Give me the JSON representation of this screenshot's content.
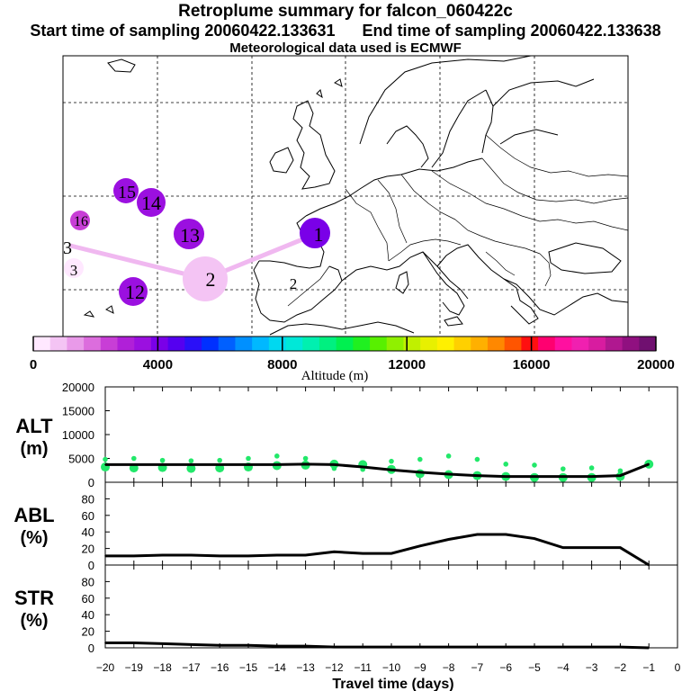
{
  "header": {
    "title": "Retroplume summary for falcon_060422c",
    "sampling_line": "Start time of sampling 20060422.133631      End time of sampling 20060422.133638",
    "met_line": "Meteorological data used is ECMWF"
  },
  "colors": {
    "trajectory": "#f0b8f0",
    "alt_line": "#000000",
    "alt_dots": "#22e86a",
    "grid": "#000000"
  },
  "chart_data": [
    {
      "type": "map-bubble",
      "title": "Retroplume summary for falcon_060422c",
      "colorbar": {
        "label": "Altitude (m)",
        "min": 0,
        "max": 20000,
        "tick_labels": [
          "0",
          "4000",
          "8000",
          "12000",
          "16000",
          "20000"
        ],
        "colors": [
          "#ffe8ff",
          "#f4c4f4",
          "#e99ae9",
          "#dc6ddd",
          "#c83ed6",
          "#b020d8",
          "#9b10e0",
          "#7a00e8",
          "#5500f0",
          "#2a10f8",
          "#0030ff",
          "#0060ff",
          "#0090ff",
          "#00b8ff",
          "#00d8f0",
          "#00e8d8",
          "#00f0b0",
          "#00f080",
          "#00f050",
          "#20f020",
          "#58f000",
          "#90f000",
          "#c0f000",
          "#e8f000",
          "#fff000",
          "#ffd000",
          "#ffb000",
          "#ff8800",
          "#ff5500",
          "#ff1010",
          "#ff0070",
          "#ff10a0",
          "#f020b0",
          "#d81ca0",
          "#b01890",
          "#901080",
          "#701070"
        ]
      },
      "points": [
        {
          "label": "1",
          "altitude_m": 3600,
          "size": "medium"
        },
        {
          "label": "2",
          "altitude_m": 1200,
          "size": "large"
        },
        {
          "label": "2",
          "altitude_m": 0,
          "size": "none"
        },
        {
          "label": "3",
          "altitude_m": 300,
          "size": "small"
        },
        {
          "label": "3",
          "altitude_m": 1200,
          "size": "none"
        },
        {
          "label": "12",
          "altitude_m": 3700,
          "size": "medium"
        },
        {
          "label": "13",
          "altitude_m": 3900,
          "size": "medium"
        },
        {
          "label": "14",
          "altitude_m": 3800,
          "size": "medium"
        },
        {
          "label": "15",
          "altitude_m": 3800,
          "size": "medium"
        },
        {
          "label": "16",
          "altitude_m": 3100,
          "size": "small"
        }
      ]
    },
    {
      "type": "line",
      "panel": "ALT",
      "ylabel": [
        "ALT",
        "(m)"
      ],
      "yticks": [
        "20000",
        "15000",
        "10000",
        "5000",
        "0"
      ],
      "ylim": [
        0,
        20000
      ],
      "x": [
        -20,
        -19,
        -18,
        -17,
        -16,
        -15,
        -14,
        -13,
        -12,
        -11,
        -10,
        -9,
        -8,
        -7,
        -6,
        -5,
        -4,
        -3,
        -2,
        -1
      ],
      "values": [
        3700,
        3700,
        3700,
        3700,
        3700,
        3700,
        3700,
        3800,
        3700,
        3200,
        2600,
        2100,
        1700,
        1400,
        1200,
        1200,
        1200,
        1200,
        1400,
        3800
      ],
      "scatter": [
        {
          "x": -20,
          "values": [
            3200,
            4800
          ]
        },
        {
          "x": -19,
          "values": [
            3000,
            5000
          ]
        },
        {
          "x": -18,
          "values": [
            3100,
            4600
          ]
        },
        {
          "x": -17,
          "values": [
            2900,
            4500
          ]
        },
        {
          "x": -16,
          "values": [
            3000,
            4600
          ]
        },
        {
          "x": -15,
          "values": [
            3200,
            5000
          ]
        },
        {
          "x": -14,
          "values": [
            3500,
            5500
          ]
        },
        {
          "x": -13,
          "values": [
            3600,
            5000
          ]
        },
        {
          "x": -12,
          "values": [
            3800,
            2900
          ]
        },
        {
          "x": -11,
          "values": [
            3700,
            2700
          ]
        },
        {
          "x": -10,
          "values": [
            2700,
            4400
          ]
        },
        {
          "x": -9,
          "values": [
            1800,
            4800
          ]
        },
        {
          "x": -8,
          "values": [
            1600,
            5500
          ]
        },
        {
          "x": -7,
          "values": [
            1400,
            4800
          ]
        },
        {
          "x": -6,
          "values": [
            1200,
            3800
          ]
        },
        {
          "x": -5,
          "values": [
            1000,
            3600
          ]
        },
        {
          "x": -4,
          "values": [
            1000,
            2800
          ]
        },
        {
          "x": -3,
          "values": [
            1000,
            3000
          ]
        },
        {
          "x": -2,
          "values": [
            1200,
            2400
          ]
        },
        {
          "x": -1,
          "values": [
            3800
          ]
        }
      ]
    },
    {
      "type": "line",
      "panel": "ABL",
      "ylabel": [
        "ABL",
        "(%)"
      ],
      "yticks": [
        "80",
        "60",
        "40",
        "20",
        "0"
      ],
      "ylim": [
        0,
        100
      ],
      "x": [
        -20,
        -19,
        -18,
        -17,
        -16,
        -15,
        -14,
        -13,
        -12,
        -11,
        -10,
        -9,
        -8,
        -7,
        -6,
        -5,
        -4,
        -3,
        -2,
        -1
      ],
      "values": [
        11,
        11,
        12,
        12,
        11,
        11,
        12,
        12,
        16,
        14,
        14,
        23,
        31,
        37,
        37,
        32,
        21,
        21,
        21,
        0
      ]
    },
    {
      "type": "line",
      "panel": "STR",
      "ylabel": [
        "STR",
        "(%)"
      ],
      "yticks": [
        "80",
        "60",
        "40",
        "20",
        "0"
      ],
      "ylim": [
        0,
        100
      ],
      "x": [
        -20,
        -19,
        -18,
        -17,
        -16,
        -15,
        -14,
        -13,
        -12,
        -11,
        -10,
        -9,
        -8,
        -7,
        -6,
        -5,
        -4,
        -3,
        -2,
        -1
      ],
      "values": [
        6,
        6,
        5,
        4,
        3,
        3,
        2,
        2,
        1,
        1,
        1,
        1,
        1,
        1,
        1,
        1,
        1,
        1,
        1,
        0
      ],
      "xlabel": "Travel time (days)",
      "xtick_labels": [
        "−20",
        "−19",
        "−18",
        "−17",
        "−16",
        "−15",
        "−14",
        "−13",
        "−12",
        "−11",
        "−10",
        "−9",
        "−8",
        "−7",
        "−6",
        "−5",
        "−4",
        "−3",
        "−2",
        "−1",
        "0"
      ]
    }
  ]
}
